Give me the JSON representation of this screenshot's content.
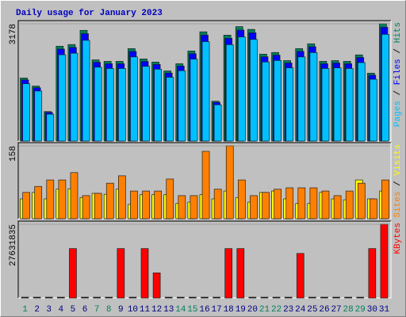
{
  "chart_data": [
    {
      "type": "bar",
      "title": "Daily usage for January 2023",
      "ylim": [
        0,
        3178
      ],
      "yticks": [
        3178
      ],
      "legend_separator": " / ",
      "series": [
        {
          "name": "Pages",
          "color": "#00c0ff",
          "values": [
            1554,
            1356,
            728,
            2339,
            2380,
            2730,
            2002,
            1966,
            1966,
            2280,
            2025,
            1947,
            1729,
            1906,
            2220,
            2694,
            983,
            2612,
            2821,
            2753,
            2143,
            2184,
            1984,
            2280,
            2398,
            1966,
            1984,
            1966,
            2125,
            1674,
            2892
          ]
        },
        {
          "name": "Files",
          "color": "#0000ff",
          "values": [
            1657,
            1445,
            776,
            2493,
            2537,
            2910,
            2134,
            2095,
            2095,
            2430,
            2158,
            2076,
            1843,
            2032,
            2367,
            2871,
            1048,
            2784,
            3007,
            2934,
            2284,
            2328,
            2115,
            2430,
            2556,
            2095,
            2115,
            2095,
            2265,
            1785,
            3083
          ]
        },
        {
          "name": "Hits",
          "color": "#00805c",
          "values": [
            1708,
            1490,
            800,
            2570,
            2615,
            3000,
            2200,
            2160,
            2160,
            2505,
            2225,
            2140,
            1900,
            2095,
            2440,
            2960,
            1080,
            2870,
            3100,
            3025,
            2355,
            2400,
            2180,
            2505,
            2635,
            2160,
            2180,
            2160,
            2335,
            1840,
            3178
          ]
        }
      ]
    },
    {
      "type": "bar",
      "ylim": [
        0,
        158
      ],
      "yticks": [
        158
      ],
      "legend_separator": " / ",
      "series": [
        {
          "name": "Sites",
          "color": "#ff8000",
          "values": [
            57,
            70,
            84,
            84,
            100,
            50,
            55,
            77,
            93,
            60,
            60,
            60,
            86,
            50,
            50,
            146,
            64,
            158,
            84,
            50,
            57,
            64,
            67,
            67,
            67,
            60,
            50,
            60,
            77,
            43,
            84
          ]
        },
        {
          "name": "Visits",
          "color": "#ffff00",
          "values": [
            43,
            57,
            43,
            64,
            65,
            46,
            55,
            53,
            64,
            31,
            52,
            52,
            52,
            33,
            36,
            52,
            43,
            60,
            46,
            36,
            57,
            60,
            43,
            33,
            33,
            57,
            43,
            41,
            84,
            43,
            60
          ]
        }
      ]
    },
    {
      "type": "bar",
      "ylim": [
        0,
        27631835
      ],
      "yticks": [
        27631835
      ],
      "categories": [
        "1",
        "2",
        "3",
        "4",
        "5",
        "6",
        "7",
        "8",
        "9",
        "10",
        "11",
        "12",
        "13",
        "14",
        "15",
        "16",
        "17",
        "18",
        "19",
        "20",
        "21",
        "22",
        "23",
        "24",
        "25",
        "26",
        "27",
        "28",
        "29",
        "30",
        "31"
      ],
      "category_colors": [
        "#00805c",
        "#000080",
        "#000080",
        "#000080",
        "#000080",
        "#000080",
        "#00805c",
        "#00805c",
        "#000080",
        "#000080",
        "#000080",
        "#000080",
        "#000080",
        "#00805c",
        "#00805c",
        "#000080",
        "#000080",
        "#000080",
        "#000080",
        "#000080",
        "#00805c",
        "#00805c",
        "#000080",
        "#000080",
        "#000080",
        "#000080",
        "#000080",
        "#00805c",
        "#00805c",
        "#000080",
        "#000080"
      ],
      "series": [
        {
          "name": "KBytes",
          "color": "#ff0000",
          "values": [
            0,
            0,
            0,
            0,
            18523000,
            0,
            0,
            0,
            18523000,
            0,
            18523000,
            9413000,
            0,
            0,
            0,
            0,
            0,
            18523000,
            18523000,
            0,
            0,
            0,
            0,
            16700000,
            0,
            0,
            0,
            0,
            0,
            18523000,
            27631835
          ]
        }
      ]
    }
  ]
}
